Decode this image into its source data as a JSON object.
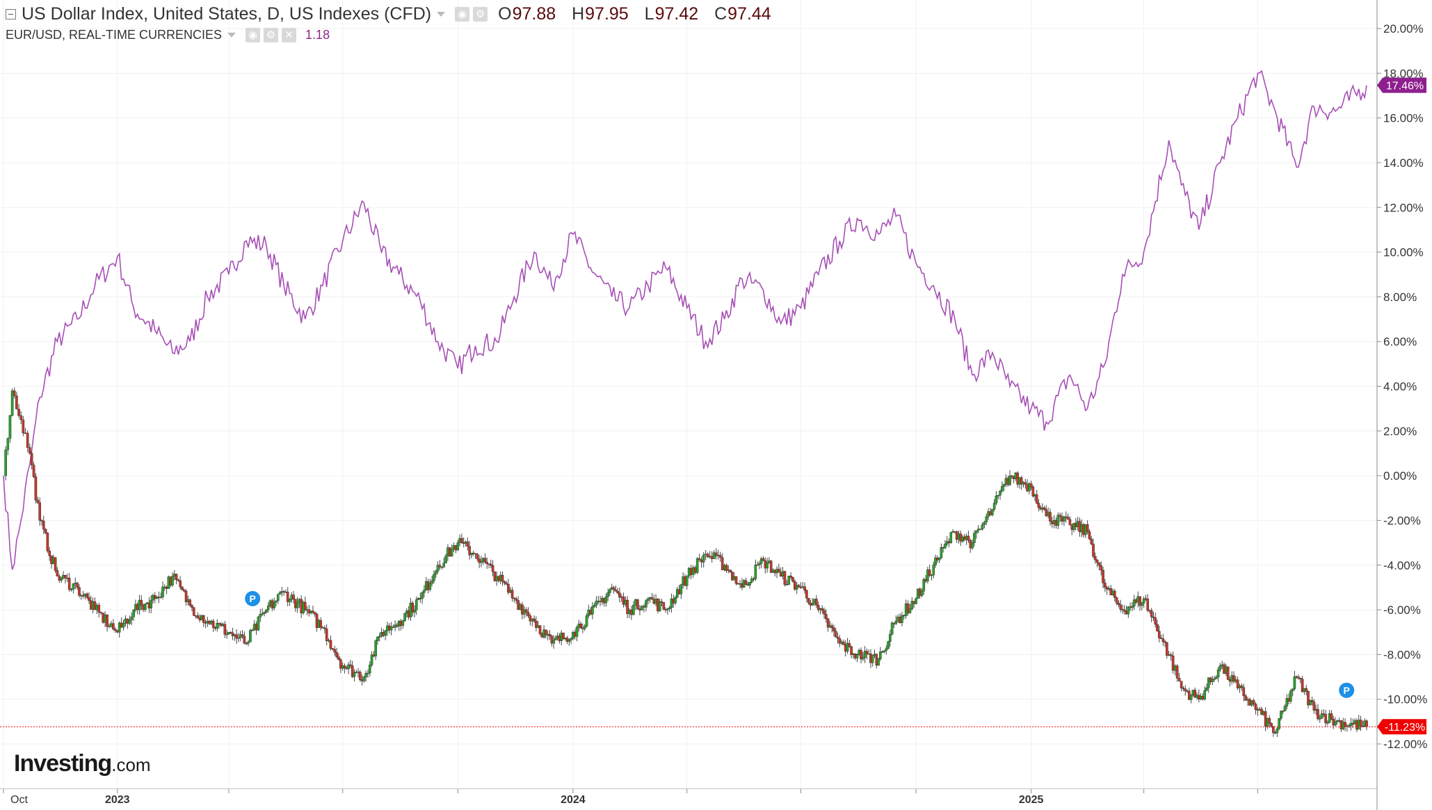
{
  "legend": {
    "primary": {
      "title": "US Dollar Index, United States, D, US Indexes (CFD)",
      "open_label": "O",
      "open": "97.88",
      "high_label": "H",
      "high": "97.95",
      "low_label": "L",
      "low": "97.42",
      "close_label": "C",
      "close": "97.44"
    },
    "secondary": {
      "title": "EUR/USD, REAL-TIME CURRENCIES",
      "value": "1.18",
      "controls": [
        "eye-icon",
        "gear-icon",
        "close-icon"
      ]
    }
  },
  "logo": {
    "brand": "Investing",
    "domain": ".com"
  },
  "colors": {
    "eurusd_line": "#a64fb5",
    "up_candle": "#2ca02c",
    "down_candle": "#c0392b",
    "eurusd_badge": "#8e1f8e",
    "dxy_badge": "#f00000",
    "grid": "#f1f1f1",
    "axis_text": "#333333"
  },
  "chart_data": {
    "type": "line",
    "xlabel": "",
    "ylabel": "",
    "ylim": [
      -14,
      21.5
    ],
    "y_ticks": [
      20,
      18,
      16,
      14,
      12,
      10,
      8,
      6,
      4,
      2,
      0,
      -2,
      -4,
      -6,
      -8,
      -10,
      -12
    ],
    "y_tick_labels": [
      "20.00%",
      "18.00%",
      "16.00%",
      "14.00%",
      "12.00%",
      "10.00%",
      "8.00%",
      "6.00%",
      "4.00%",
      "2.00%",
      "0.00%",
      "-2.00%",
      "-4.00%",
      "-6.00%",
      "-8.00%",
      "-10.00%",
      "-12.00%"
    ],
    "x_range": [
      "2022-10-03",
      "2025-09-26"
    ],
    "x_tick_labels": [
      {
        "date": "2022-10-03",
        "label": "Oct"
      },
      {
        "date": "2023-01-02",
        "label": "2023"
      },
      {
        "date": "2024-01-01",
        "label": "2024"
      },
      {
        "date": "2025-01-01",
        "label": "2025"
      }
    ],
    "x_minor_ticks": [
      "2023-04-01",
      "2023-07-01",
      "2023-10-01",
      "2024-04-01",
      "2024-07-01",
      "2024-10-01",
      "2025-04-01",
      "2025-07-01"
    ],
    "grid": true,
    "last_value_labels": [
      {
        "series": "EUR/USD",
        "value": 17.46,
        "label": "17.46%"
      },
      {
        "series": "US Dollar Index",
        "value": -11.23,
        "label": "-11.23%"
      }
    ],
    "markers": [
      {
        "date": "2023-04-20",
        "value": -5.5,
        "label": "P"
      },
      {
        "date": "2025-09-10",
        "value": -9.6,
        "label": "P"
      }
    ],
    "series": [
      {
        "name": "EUR/USD",
        "type": "line",
        "x": [
          "2022-10-03",
          "2022-10-10",
          "2022-10-17",
          "2022-10-24",
          "2022-11-01",
          "2022-11-15",
          "2022-12-01",
          "2022-12-15",
          "2023-01-02",
          "2023-01-15",
          "2023-02-01",
          "2023-02-15",
          "2023-03-01",
          "2023-03-15",
          "2023-04-01",
          "2023-04-15",
          "2023-05-01",
          "2023-05-15",
          "2023-06-01",
          "2023-06-15",
          "2023-07-01",
          "2023-07-18",
          "2023-08-01",
          "2023-08-15",
          "2023-09-01",
          "2023-09-15",
          "2023-10-01",
          "2023-10-15",
          "2023-11-01",
          "2023-11-15",
          "2023-12-01",
          "2023-12-15",
          "2024-01-01",
          "2024-01-15",
          "2024-02-01",
          "2024-02-15",
          "2024-03-01",
          "2024-03-15",
          "2024-04-01",
          "2024-04-16",
          "2024-05-01",
          "2024-05-15",
          "2024-06-01",
          "2024-06-15",
          "2024-07-01",
          "2024-07-15",
          "2024-08-01",
          "2024-08-15",
          "2024-09-01",
          "2024-09-15",
          "2024-10-01",
          "2024-10-15",
          "2024-11-01",
          "2024-11-15",
          "2024-12-01",
          "2024-12-15",
          "2025-01-01",
          "2025-01-13",
          "2025-02-01",
          "2025-02-15",
          "2025-03-01",
          "2025-03-15",
          "2025-04-01",
          "2025-04-21",
          "2025-05-01",
          "2025-05-15",
          "2025-06-01",
          "2025-06-15",
          "2025-07-01",
          "2025-07-15",
          "2025-08-01",
          "2025-08-15",
          "2025-09-01",
          "2025-09-26"
        ],
        "values": [
          0.0,
          -4.2,
          -2.0,
          0.5,
          3.5,
          6.0,
          7.0,
          8.5,
          9.8,
          7.5,
          6.5,
          5.5,
          6.0,
          8.0,
          9.0,
          10.5,
          10.3,
          8.5,
          7.0,
          8.5,
          10.5,
          12.2,
          10.0,
          9.0,
          7.8,
          6.0,
          4.8,
          5.8,
          6.0,
          8.0,
          10.0,
          8.5,
          10.8,
          9.3,
          8.0,
          7.5,
          8.5,
          9.3,
          7.5,
          6.0,
          7.0,
          8.8,
          8.3,
          6.8,
          7.5,
          9.0,
          10.5,
          11.5,
          10.8,
          11.6,
          9.5,
          8.5,
          7.0,
          4.5,
          5.5,
          4.0,
          3.0,
          2.4,
          4.5,
          3.0,
          5.0,
          9.0,
          10.0,
          15.0,
          13.0,
          11.0,
          14.0,
          16.0,
          18.0,
          16.3,
          13.8,
          16.5,
          16.3,
          17.46
        ]
      },
      {
        "name": "US Dollar Index",
        "type": "candlestick",
        "x": [
          "2022-10-03",
          "2022-10-10",
          "2022-10-17",
          "2022-10-24",
          "2022-11-01",
          "2022-11-15",
          "2022-12-01",
          "2022-12-15",
          "2023-01-02",
          "2023-01-15",
          "2023-02-01",
          "2023-02-15",
          "2023-03-01",
          "2023-03-15",
          "2023-04-01",
          "2023-04-15",
          "2023-05-01",
          "2023-05-15",
          "2023-06-01",
          "2023-06-15",
          "2023-07-01",
          "2023-07-18",
          "2023-08-01",
          "2023-08-15",
          "2023-09-01",
          "2023-09-15",
          "2023-10-01",
          "2023-10-15",
          "2023-11-01",
          "2023-11-15",
          "2023-12-01",
          "2023-12-15",
          "2024-01-01",
          "2024-01-15",
          "2024-02-01",
          "2024-02-15",
          "2024-03-01",
          "2024-03-15",
          "2024-04-01",
          "2024-04-16",
          "2024-05-01",
          "2024-05-15",
          "2024-06-01",
          "2024-06-15",
          "2024-07-01",
          "2024-07-15",
          "2024-08-01",
          "2024-08-15",
          "2024-09-01",
          "2024-09-15",
          "2024-10-01",
          "2024-10-15",
          "2024-11-01",
          "2024-11-15",
          "2024-12-01",
          "2024-12-15",
          "2025-01-01",
          "2025-01-13",
          "2025-02-01",
          "2025-02-15",
          "2025-03-01",
          "2025-03-15",
          "2025-04-01",
          "2025-04-21",
          "2025-05-01",
          "2025-05-15",
          "2025-06-01",
          "2025-06-15",
          "2025-07-01",
          "2025-07-15",
          "2025-08-01",
          "2025-08-15",
          "2025-09-01",
          "2025-09-26"
        ],
        "values": [
          0.0,
          3.8,
          2.5,
          1.0,
          -2.0,
          -4.5,
          -5.0,
          -6.0,
          -7.0,
          -6.0,
          -5.5,
          -4.5,
          -5.8,
          -6.5,
          -7.0,
          -7.5,
          -6.0,
          -5.2,
          -6.0,
          -6.8,
          -8.5,
          -9.0,
          -7.0,
          -6.5,
          -5.5,
          -4.0,
          -3.0,
          -3.5,
          -4.5,
          -5.5,
          -6.5,
          -7.5,
          -7.0,
          -6.2,
          -5.0,
          -6.0,
          -5.5,
          -6.0,
          -4.5,
          -3.5,
          -4.0,
          -5.0,
          -3.8,
          -4.5,
          -5.0,
          -6.0,
          -7.5,
          -8.0,
          -8.2,
          -6.5,
          -5.5,
          -4.0,
          -2.5,
          -3.0,
          -1.5,
          0.0,
          -0.5,
          -1.8,
          -2.2,
          -2.5,
          -5.0,
          -6.0,
          -5.5,
          -8.0,
          -9.5,
          -10.0,
          -8.5,
          -9.5,
          -10.5,
          -11.5,
          -9.0,
          -10.5,
          -11.0,
          -11.23
        ]
      }
    ]
  }
}
